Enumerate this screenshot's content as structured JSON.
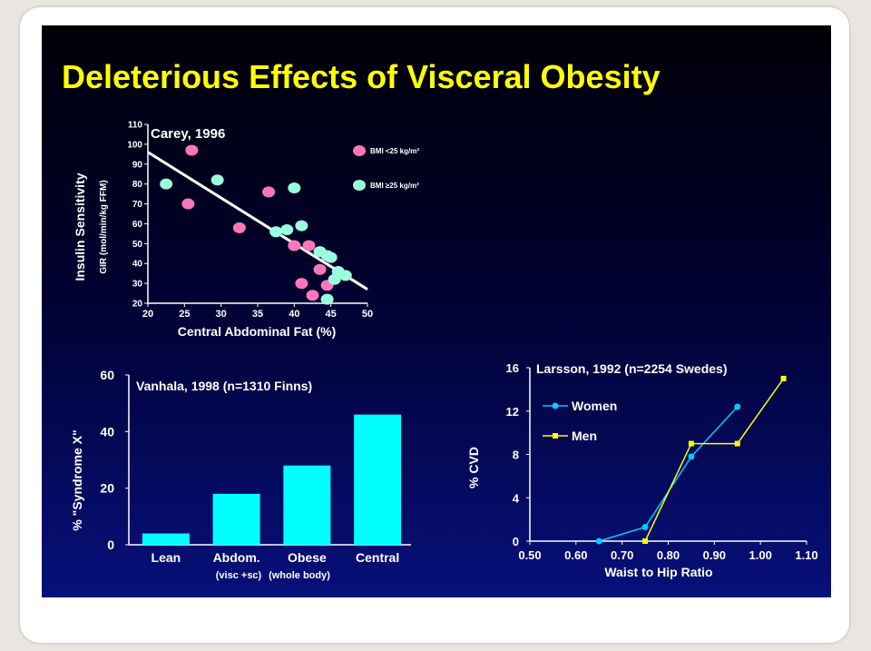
{
  "slide": {
    "title": "Deleterious Effects of Visceral Obesity"
  },
  "colors": {
    "title": "#ffff00",
    "bmi_lt25": "#ff77bb",
    "bmi_ge25": "#99ffdd",
    "fit_line": "#ffffff",
    "bars": "#00ffff",
    "women": "#00ccff",
    "men": "#ffff00"
  },
  "chart_data": [
    {
      "type": "scatter",
      "annotation": "Carey, 1996",
      "xlabel": "Central Abdominal Fat (%)",
      "ylabel": "Insulin Sensitivity",
      "ylabel2": "GIR (mol/min/kg FFM)",
      "xlim": [
        20,
        50
      ],
      "ylim": [
        20,
        110
      ],
      "xticks": [
        20,
        25,
        30,
        35,
        40,
        45,
        50
      ],
      "yticks": [
        20,
        30,
        40,
        50,
        60,
        70,
        80,
        90,
        100,
        110
      ],
      "series": [
        {
          "name": "BMI <25 kg/m²",
          "color": "#ff77bb",
          "x": [
            26,
            25.5,
            32.5,
            36.5,
            40,
            42,
            43.5,
            44.5,
            41,
            42.5
          ],
          "y": [
            97,
            70,
            58,
            76,
            49,
            49,
            37,
            29,
            30,
            24
          ]
        },
        {
          "name": "BMI ≥25 kg/m²",
          "color": "#99ffdd",
          "x": [
            22.5,
            29.5,
            40,
            37.5,
            39,
            41,
            43.5,
            44.5,
            45,
            46,
            47,
            44.5,
            45.5
          ],
          "y": [
            80,
            82,
            78,
            56,
            57,
            59,
            46,
            44,
            43,
            36,
            34,
            22,
            32
          ]
        }
      ],
      "fit_line": {
        "x": [
          20,
          50
        ],
        "y": [
          96,
          27
        ]
      }
    },
    {
      "type": "bar",
      "annotation": "Vanhala, 1998  (n=1310 Finns)",
      "ylabel": "% \"Syndrome X\"",
      "categories": [
        "Lean",
        "Abdom.",
        "Obese",
        "Central"
      ],
      "sublabels": [
        "(visc +sc)",
        "(whole body)"
      ],
      "values": [
        4,
        18,
        28,
        46
      ],
      "ylim": [
        0,
        60
      ],
      "yticks": [
        0,
        20,
        40,
        60
      ]
    },
    {
      "type": "line",
      "annotation": "Larsson, 1992  (n=2254 Swedes)",
      "xlabel": "Waist to Hip Ratio",
      "ylabel": "% CVD",
      "xlim": [
        0.5,
        1.1
      ],
      "ylim": [
        0,
        16
      ],
      "xticks": [
        "0.50",
        "0.60",
        "0.70",
        "0.80",
        "0.90",
        "1.00",
        "1.10"
      ],
      "yticks": [
        0,
        4,
        8,
        12,
        16
      ],
      "series": [
        {
          "name": "Women",
          "color": "#00ccff",
          "marker": "circle",
          "x": [
            0.65,
            0.75,
            0.85,
            0.95
          ],
          "y": [
            0,
            1.3,
            7.8,
            12.4
          ]
        },
        {
          "name": "Men",
          "color": "#ffff00",
          "marker": "square",
          "x": [
            0.75,
            0.85,
            0.95,
            1.05
          ],
          "y": [
            0,
            9,
            9,
            15
          ]
        }
      ]
    }
  ]
}
